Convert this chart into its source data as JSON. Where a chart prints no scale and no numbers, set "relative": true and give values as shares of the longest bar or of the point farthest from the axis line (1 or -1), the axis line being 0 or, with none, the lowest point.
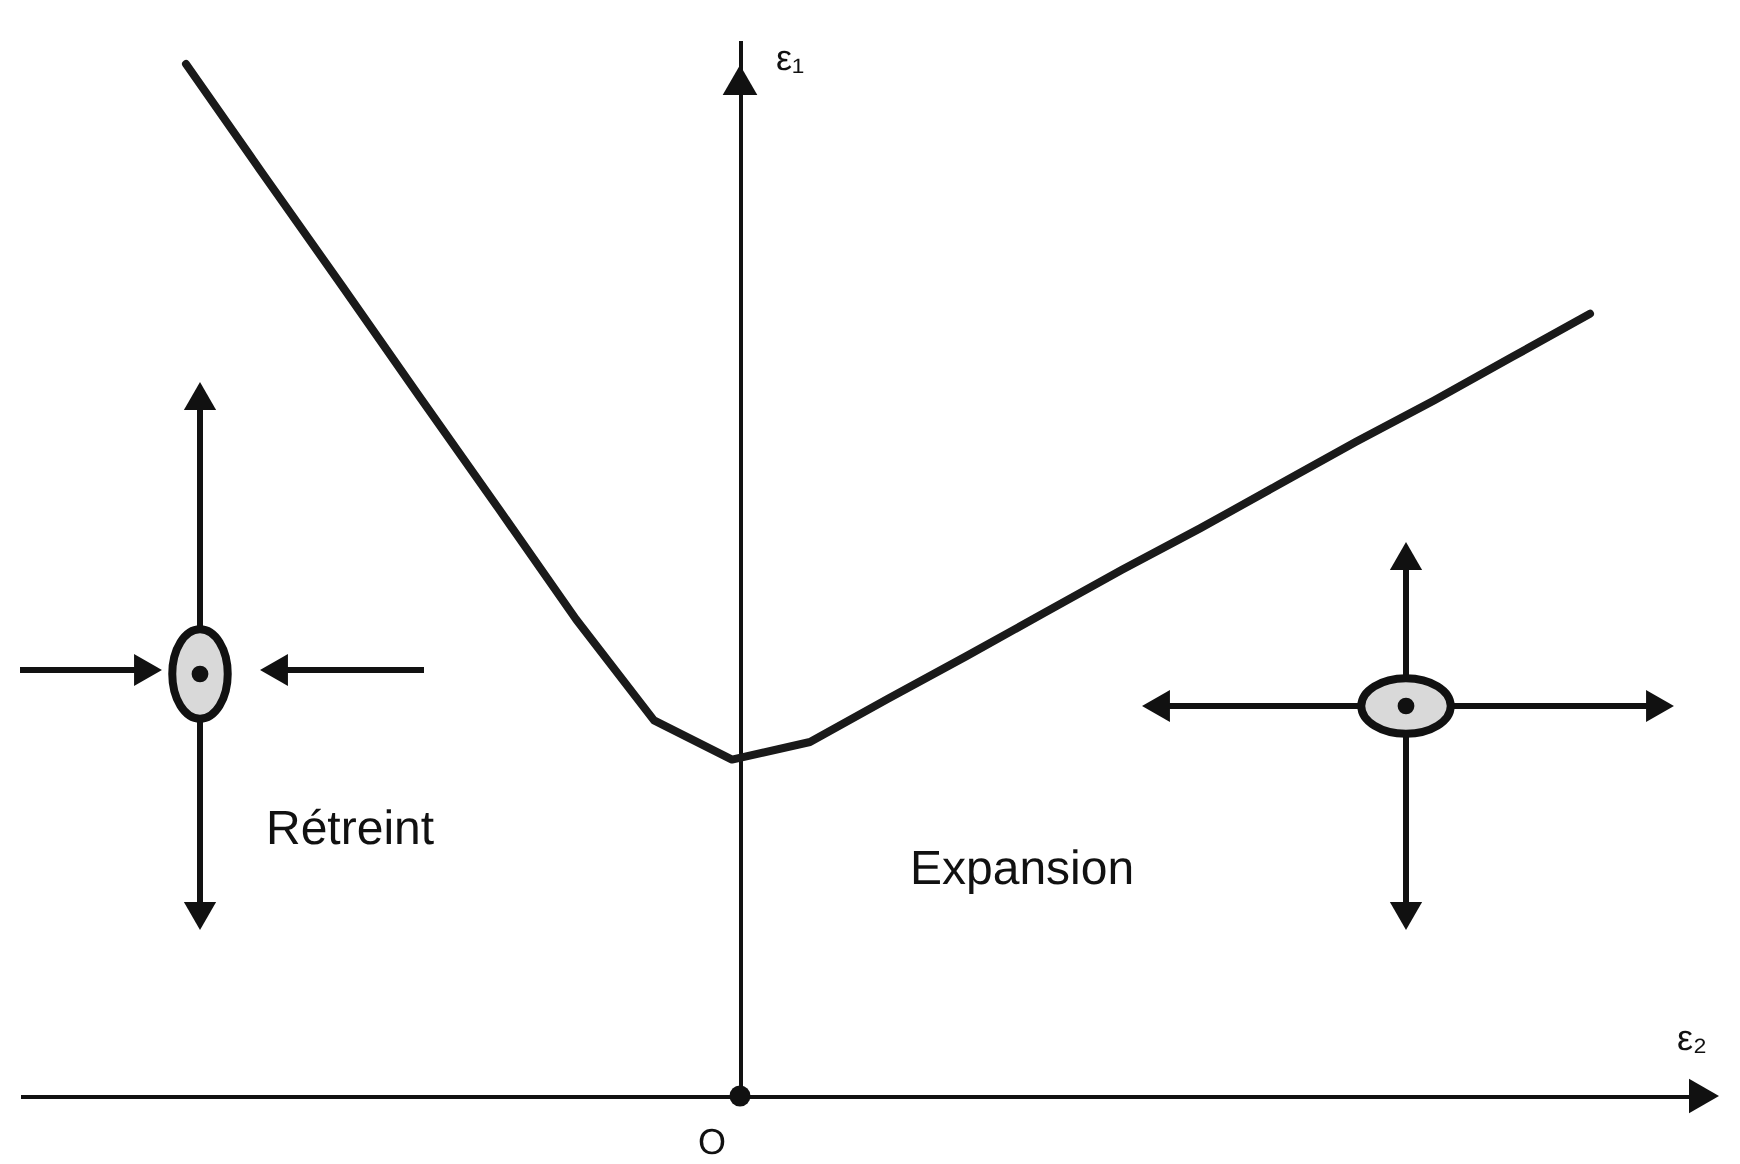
{
  "chart_data": {
    "type": "line",
    "relative": true,
    "xlabel": "ε₂",
    "ylabel": "ε₁",
    "categories": [
      null,
      null,
      null,
      null,
      null,
      null,
      null,
      null,
      null,
      null,
      null,
      null,
      null,
      null,
      null,
      null,
      null,
      null,
      null
    ],
    "series": [
      {
        "color": "#1a1a1a",
        "values": [
          1.0,
          0.892,
          0.785,
          0.677,
          0.57,
          0.462,
          0.364,
          0.326,
          0.343,
          0.385,
          0.426,
          0.468,
          0.51,
          0.55,
          0.592,
          0.634,
          0.674,
          0.716,
          0.758
        ]
      }
    ],
    "annotations": [
      "Rétreint",
      "Expansion",
      "O"
    ],
    "grid": false,
    "line_style": "solid"
  }
}
